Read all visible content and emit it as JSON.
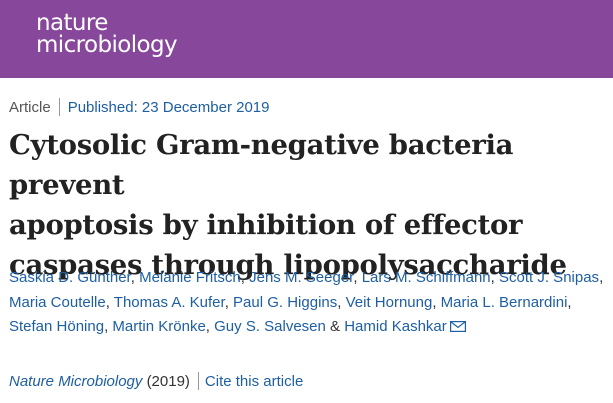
{
  "header": {
    "brand_line1": "nature",
    "brand_line2": "microbiology",
    "brand_color": "#87479a"
  },
  "meta": {
    "type": "Article",
    "published": "Published: 23 December 2019"
  },
  "title_lines": [
    "Cytosolic Gram-negative bacteria prevent",
    "apoptosis by inhibition of effector",
    "caspases through lipopolysaccharide"
  ],
  "authors": [
    "Saskia D. Günther",
    "Melanie Fritsch",
    "Jens M. Seeger",
    "Lars M. Schiffmann",
    "Scott J. Snipas",
    "Maria Coutelle",
    "Thomas A. Kufer",
    "Paul G. Higgins",
    "Veit Hornung",
    "Maria L. Bernardini",
    "Stefan Höning",
    "Martin Krönke",
    "Guy S. Salvesen",
    "Hamid Kashkar"
  ],
  "citation": {
    "journal": "Nature Microbiology",
    "year": "(2019)",
    "cite_label": "Cite this article"
  },
  "colors": {
    "link": "#1e5fa3",
    "text": "#222222"
  }
}
